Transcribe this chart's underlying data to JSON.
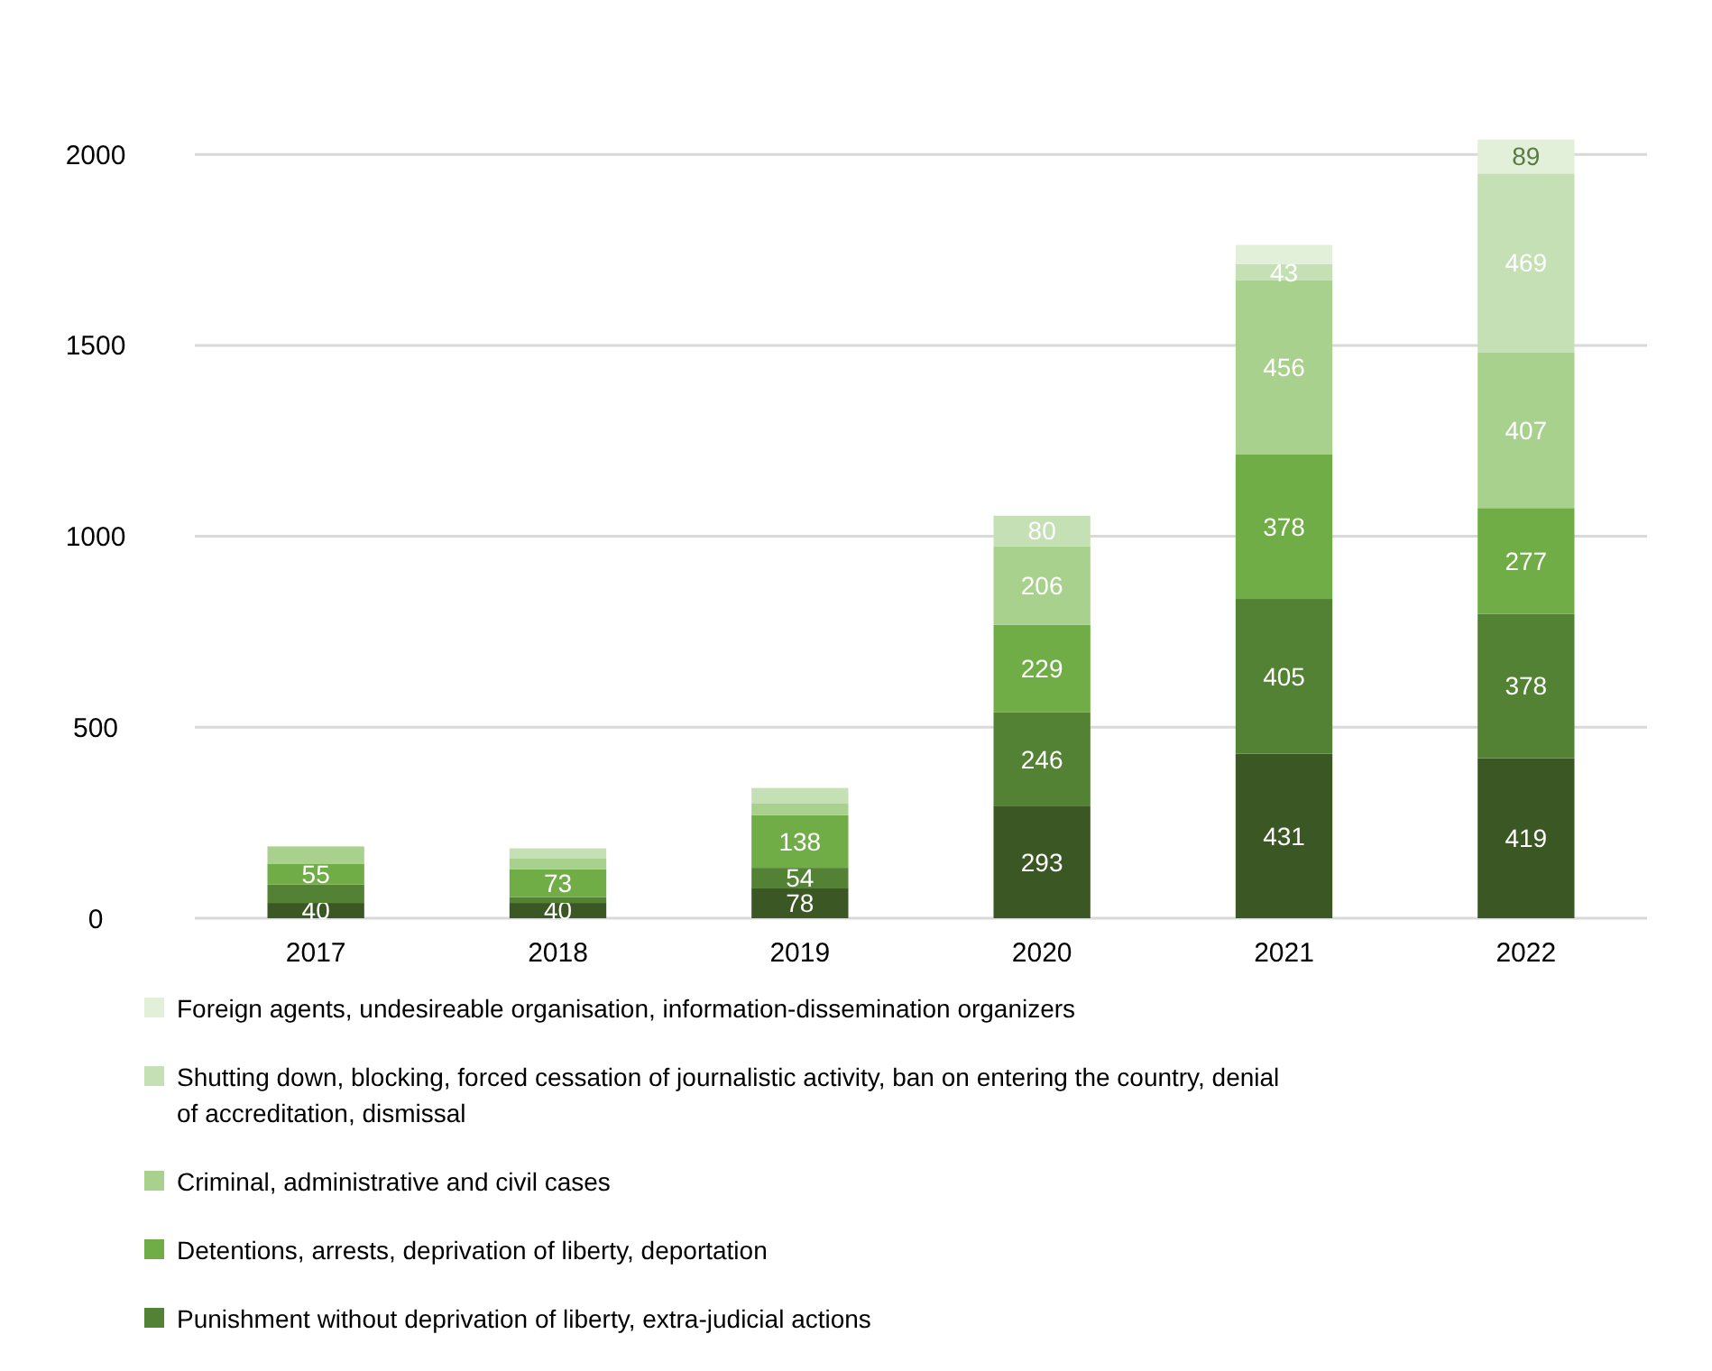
{
  "chart_data": {
    "type": "bar",
    "stacked": true,
    "categories": [
      "2017",
      "2018",
      "2019",
      "2020",
      "2021",
      "2022"
    ],
    "series": [
      {
        "color": "#3b5724",
        "values": [
          40,
          40,
          78,
          293,
          431,
          419
        ],
        "value_labels": [
          "40",
          "40",
          "78",
          "293",
          "431",
          "419"
        ]
      },
      {
        "name": "Punishment without deprivation of liberty, extra-judicial actions",
        "color": "#548235",
        "values": [
          48,
          15,
          54,
          246,
          405,
          378
        ],
        "value_labels": [
          null,
          null,
          "54",
          "246",
          "405",
          "378"
        ]
      },
      {
        "name": "Detentions, arrests, deprivation of liberty, deportation",
        "color": "#70ad47",
        "values": [
          55,
          73,
          138,
          229,
          378,
          277
        ],
        "value_labels": [
          "55",
          "73",
          "138",
          "229",
          "378",
          "277"
        ]
      },
      {
        "name": "Criminal, administrative and civil cases",
        "color": "#a9d18e",
        "values": [
          45,
          28,
          30,
          206,
          456,
          407
        ],
        "value_labels": [
          null,
          null,
          null,
          "206",
          "456",
          "407"
        ]
      },
      {
        "name": "Shutting down, blocking, forced cessation of journalistic activity, ban on entering the country, denial of accreditation, dismissal",
        "color": "#c5e0b4",
        "values": [
          0,
          27,
          41,
          80,
          43,
          469
        ],
        "value_labels": [
          null,
          null,
          null,
          "80",
          "43",
          "469"
        ]
      },
      {
        "name": "Foreign agents, undesireable organisation, information-dissemination organizers",
        "color": "#e2f0d9",
        "values": [
          0,
          0,
          0,
          0,
          50,
          89
        ],
        "value_labels": [
          null,
          null,
          null,
          null,
          null,
          "89"
        ]
      }
    ],
    "ylim": [
      0,
      2050
    ],
    "yticks": [
      0,
      500,
      1000,
      1500,
      2000
    ],
    "grid": "y",
    "legend": "bottom"
  }
}
